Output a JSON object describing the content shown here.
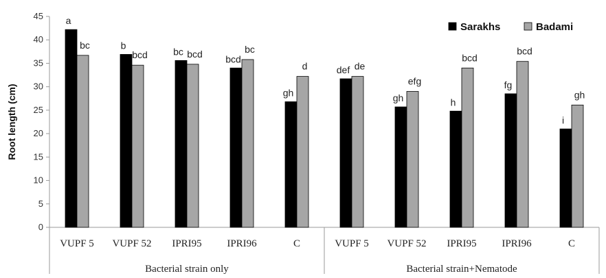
{
  "chart_data": {
    "type": "bar",
    "ylabel": "Root length (cm)",
    "ylim": [
      0,
      45
    ],
    "yticks": [
      0,
      5,
      10,
      15,
      20,
      25,
      30,
      35,
      40,
      45
    ],
    "grid": false,
    "legend_position": "top-right",
    "categories": [
      "VUPF 5",
      "VUPF 52",
      "IPRI95",
      "IPRI96",
      "C",
      "VUPF 5",
      "VUPF 52",
      "IPRI95",
      "IPRI96",
      "C"
    ],
    "groups": [
      {
        "label": "Bacterial strain only",
        "start": 0,
        "end": 4
      },
      {
        "label": "Bacterial strain+Nematode",
        "start": 5,
        "end": 9
      }
    ],
    "series": [
      {
        "name": "Sarakhs",
        "color": "#000000",
        "values": [
          42.2,
          36.9,
          35.6,
          34.0,
          26.8,
          31.7,
          25.7,
          24.8,
          28.5,
          21.0
        ],
        "letters": [
          "a",
          "b",
          "bc",
          "bcd",
          "gh",
          "def",
          "gh",
          "h",
          "fg",
          "i"
        ]
      },
      {
        "name": "Badami",
        "color": "#a6a6a6",
        "values": [
          36.7,
          34.6,
          34.8,
          35.8,
          32.2,
          32.2,
          29.0,
          34.0,
          35.4,
          26.1
        ],
        "letters": [
          "bc",
          "bcd",
          "bcd",
          "bc",
          "d",
          "de",
          "efg",
          "bcd",
          "bcd",
          "gh"
        ]
      }
    ]
  }
}
